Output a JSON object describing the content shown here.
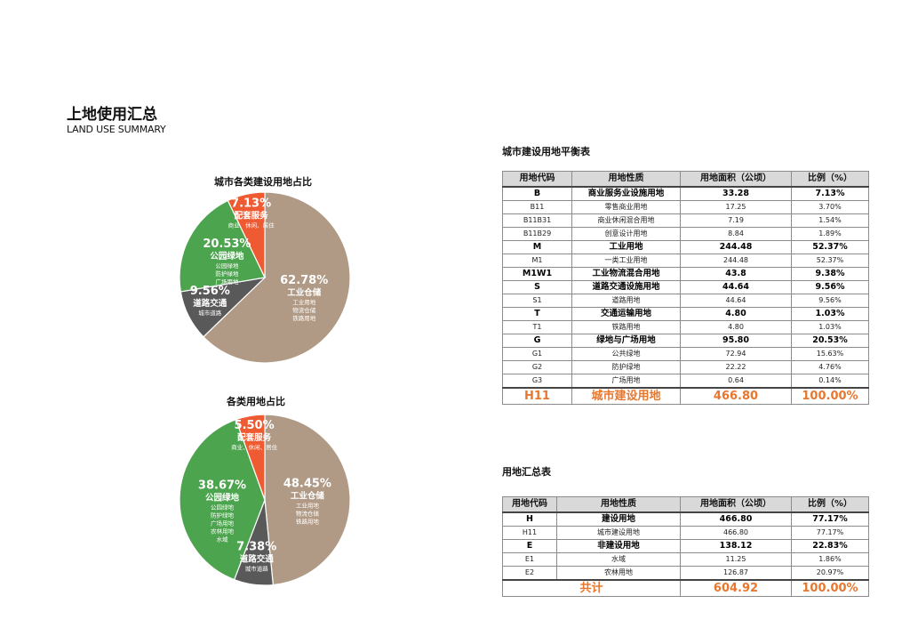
{
  "header": {
    "title": "上地使用汇总",
    "subtitle": "LAND USE SUMMARY"
  },
  "colors": {
    "brown": "#b09a85",
    "green": "#4da44e",
    "dark": "#595959",
    "red": "#ee5a32",
    "orange": "#e8772e"
  },
  "chart_data": [
    {
      "type": "pie",
      "title": "城市各类建设用地占比",
      "slices": [
        {
          "percent": 62.78,
          "label": "62.78%",
          "name": "工业仓储",
          "items": [
            "工业用地",
            "物流仓储",
            "铁路用地"
          ],
          "color": "#b09a85"
        },
        {
          "percent": 9.56,
          "label": "9.56%",
          "name": "道路交通",
          "items": [
            "城市道路"
          ],
          "color": "#595959"
        },
        {
          "percent": 20.53,
          "label": "20.53%",
          "name": "公园绿地",
          "items": [
            "公园绿地",
            "防护绿地",
            "广场用地"
          ],
          "color": "#4da44e"
        },
        {
          "percent": 7.13,
          "label": "7.13%",
          "name": "配套服务",
          "items": [
            "商业、休闲、居住"
          ],
          "color": "#ee5a32"
        }
      ]
    },
    {
      "type": "pie",
      "title": "各类用地占比",
      "slices": [
        {
          "percent": 48.45,
          "label": "48.45%",
          "name": "工业仓储",
          "items": [
            "工业用地",
            "物流仓储",
            "铁路用地"
          ],
          "color": "#b09a85"
        },
        {
          "percent": 7.38,
          "label": "7.38%",
          "name": "道路交通",
          "items": [
            "城市道路"
          ],
          "color": "#595959"
        },
        {
          "percent": 38.67,
          "label": "38.67%",
          "name": "公园绿地",
          "items": [
            "公园绿地",
            "防护绿地",
            "广场用地",
            "农林用地",
            "水域"
          ],
          "color": "#4da44e"
        },
        {
          "percent": 5.5,
          "label": "5.50%",
          "name": "配套服务",
          "items": [
            "商业、休闲、居住"
          ],
          "color": "#ee5a32"
        }
      ]
    }
  ],
  "table1": {
    "title": "城市建设用地平衡表",
    "headers": [
      "用地代码",
      "用地性质",
      "用地面积（公顷）",
      "比例（%）"
    ],
    "rows": [
      {
        "cells": [
          "B",
          "商业服务业设施用地",
          "33.28",
          "7.13%"
        ],
        "bold": true
      },
      {
        "cells": [
          "B11",
          "零售商业用地",
          "17.25",
          "3.70%"
        ],
        "bold": false
      },
      {
        "cells": [
          "B11B31",
          "商业休闲混合用地",
          "7.19",
          "1.54%"
        ],
        "bold": false
      },
      {
        "cells": [
          "B11B29",
          "创意设计用地",
          "8.84",
          "1.89%"
        ],
        "bold": false
      },
      {
        "cells": [
          "M",
          "工业用地",
          "244.48",
          "52.37%"
        ],
        "bold": true
      },
      {
        "cells": [
          "M1",
          "一类工业用地",
          "244.48",
          "52.37%"
        ],
        "bold": false
      },
      {
        "cells": [
          "M1W1",
          "工业物流混合用地",
          "43.8",
          "9.38%"
        ],
        "bold": true
      },
      {
        "cells": [
          "S",
          "道路交通设施用地",
          "44.64",
          "9.56%"
        ],
        "bold": true
      },
      {
        "cells": [
          "S1",
          "道路用地",
          "44.64",
          "9.56%"
        ],
        "bold": false
      },
      {
        "cells": [
          "T",
          "交通运输用地",
          "4.80",
          "1.03%"
        ],
        "bold": true
      },
      {
        "cells": [
          "T1",
          "铁路用地",
          "4.80",
          "1.03%"
        ],
        "bold": false
      },
      {
        "cells": [
          "G",
          "绿地与广场用地",
          "95.80",
          "20.53%"
        ],
        "bold": true
      },
      {
        "cells": [
          "G1",
          "公共绿地",
          "72.94",
          "15.63%"
        ],
        "bold": false
      },
      {
        "cells": [
          "G2",
          "防护绿地",
          "22.22",
          "4.76%"
        ],
        "bold": false
      },
      {
        "cells": [
          "G3",
          "广场用地",
          "0.64",
          "0.14%"
        ],
        "bold": false
      }
    ],
    "total": [
      "H11",
      "城市建设用地",
      "466.80",
      "100.00%"
    ]
  },
  "table2": {
    "title": "用地汇总表",
    "headers": [
      "用地代码",
      "用地性质",
      "用地面积（公顷）",
      "比例（%）"
    ],
    "rows": [
      {
        "cells": [
          "H",
          "建设用地",
          "466.80",
          "77.17%"
        ],
        "bold": true
      },
      {
        "cells": [
          "H11",
          "城市建设用地",
          "466.80",
          "77.17%"
        ],
        "bold": false
      },
      {
        "cells": [
          "E",
          "非建设用地",
          "138.12",
          "22.83%"
        ],
        "bold": true
      },
      {
        "cells": [
          "E1",
          "水域",
          "11.25",
          "1.86%"
        ],
        "bold": false
      },
      {
        "cells": [
          "E2",
          "农林用地",
          "126.87",
          "20.97%"
        ],
        "bold": false
      }
    ],
    "total_label": "共计",
    "total_area": "604.92",
    "total_ratio": "100.00%"
  }
}
